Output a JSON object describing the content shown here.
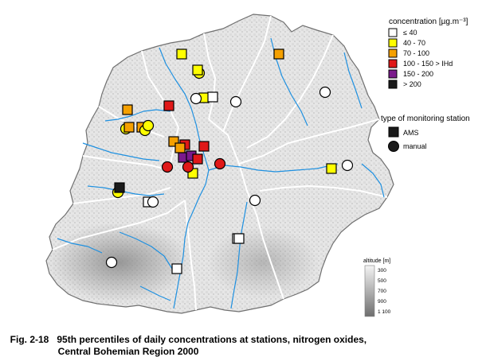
{
  "legend": {
    "concentration_title": "concentration [µg.m⁻³]",
    "classes": [
      {
        "label": "≤ 40",
        "color": "#ffffff"
      },
      {
        "label": "40 - 70",
        "color": "#ffff00"
      },
      {
        "label": "70 - 100",
        "color": "#f5a000"
      },
      {
        "label": "100 - 150 > IHd",
        "color": "#e01818"
      },
      {
        "label": "150 - 200",
        "color": "#7b1a8c"
      },
      {
        "label": "> 200",
        "color": "#1a1a1a"
      }
    ],
    "station_type_title": "type of monitoring station",
    "station_types": [
      {
        "label": "AMS",
        "shape": "square"
      },
      {
        "label": "manual",
        "shape": "circle"
      }
    ],
    "altitude_title": "altitude [m]",
    "altitude_ticks": [
      "300",
      "500",
      "700",
      "900",
      "1 100"
    ]
  },
  "caption": {
    "number": "Fig. 2-18",
    "line1": "95th percentiles of daily concentrations at stations, nitrogen oxides,",
    "line2": "Central Bohemian Region 2000"
  },
  "colors": {
    "region_fill": "#e4e4e4",
    "district_border": "#ffffff",
    "outline": "#707070",
    "river": "#1e90e0"
  },
  "stations": [
    {
      "type": "ams",
      "class": "40 - 70"
    },
    {
      "type": "ams",
      "class": "70 - 100"
    },
    {
      "type": "manual",
      "class": "40 - 70"
    },
    {
      "type": "ams",
      "class": "40 - 70"
    },
    {
      "type": "ams",
      "class": "70 - 100"
    },
    {
      "type": "ams",
      "class": "100 - 150 > IHd"
    },
    {
      "type": "ams",
      "class": "40 - 70"
    },
    {
      "type": "ams",
      "class": "≤ 40"
    },
    {
      "type": "manual",
      "class": "40 - 70"
    },
    {
      "type": "manual",
      "class": "≤ 40"
    },
    {
      "type": "manual",
      "class": "≤ 40"
    },
    {
      "type": "ams",
      "class": "70 - 100"
    },
    {
      "type": "ams",
      "class": "70 - 100"
    },
    {
      "type": "manual",
      "class": "40 - 70"
    },
    {
      "type": "manual",
      "class": "40 - 70"
    },
    {
      "type": "ams",
      "class": "70 - 100"
    },
    {
      "type": "ams",
      "class": "100 - 150 > IHd"
    },
    {
      "type": "ams",
      "class": "100 - 150 > IHd"
    },
    {
      "type": "ams",
      "class": "150 - 200"
    },
    {
      "type": "ams",
      "class": "150 - 200"
    },
    {
      "type": "ams",
      "class": "100 - 150 > IHd"
    },
    {
      "type": "ams",
      "class": "70 - 100"
    },
    {
      "type": "ams",
      "class": "40 - 70"
    },
    {
      "type": "manual",
      "class": "100 - 150 > IHd"
    },
    {
      "type": "manual",
      "class": "100 - 150 > IHd"
    },
    {
      "type": "manual",
      "class": "100 - 150 > IHd"
    },
    {
      "type": "manual",
      "class": "≤ 40"
    },
    {
      "type": "ams",
      "class": "≤ 40"
    },
    {
      "type": "manual",
      "class": "40 - 70"
    },
    {
      "type": "ams",
      "class": "> 200"
    },
    {
      "type": "manual",
      "class": "≤ 40"
    },
    {
      "type": "ams",
      "class": "≤ 40"
    },
    {
      "type": "manual",
      "class": "≤ 40"
    },
    {
      "type": "manual",
      "class": "≤ 40"
    },
    {
      "type": "ams",
      "class": "≤ 40"
    },
    {
      "type": "ams",
      "class": "40 - 70"
    },
    {
      "type": "ams",
      "class": "≤ 40"
    },
    {
      "type": "manual",
      "class": "≤ 40"
    }
  ]
}
